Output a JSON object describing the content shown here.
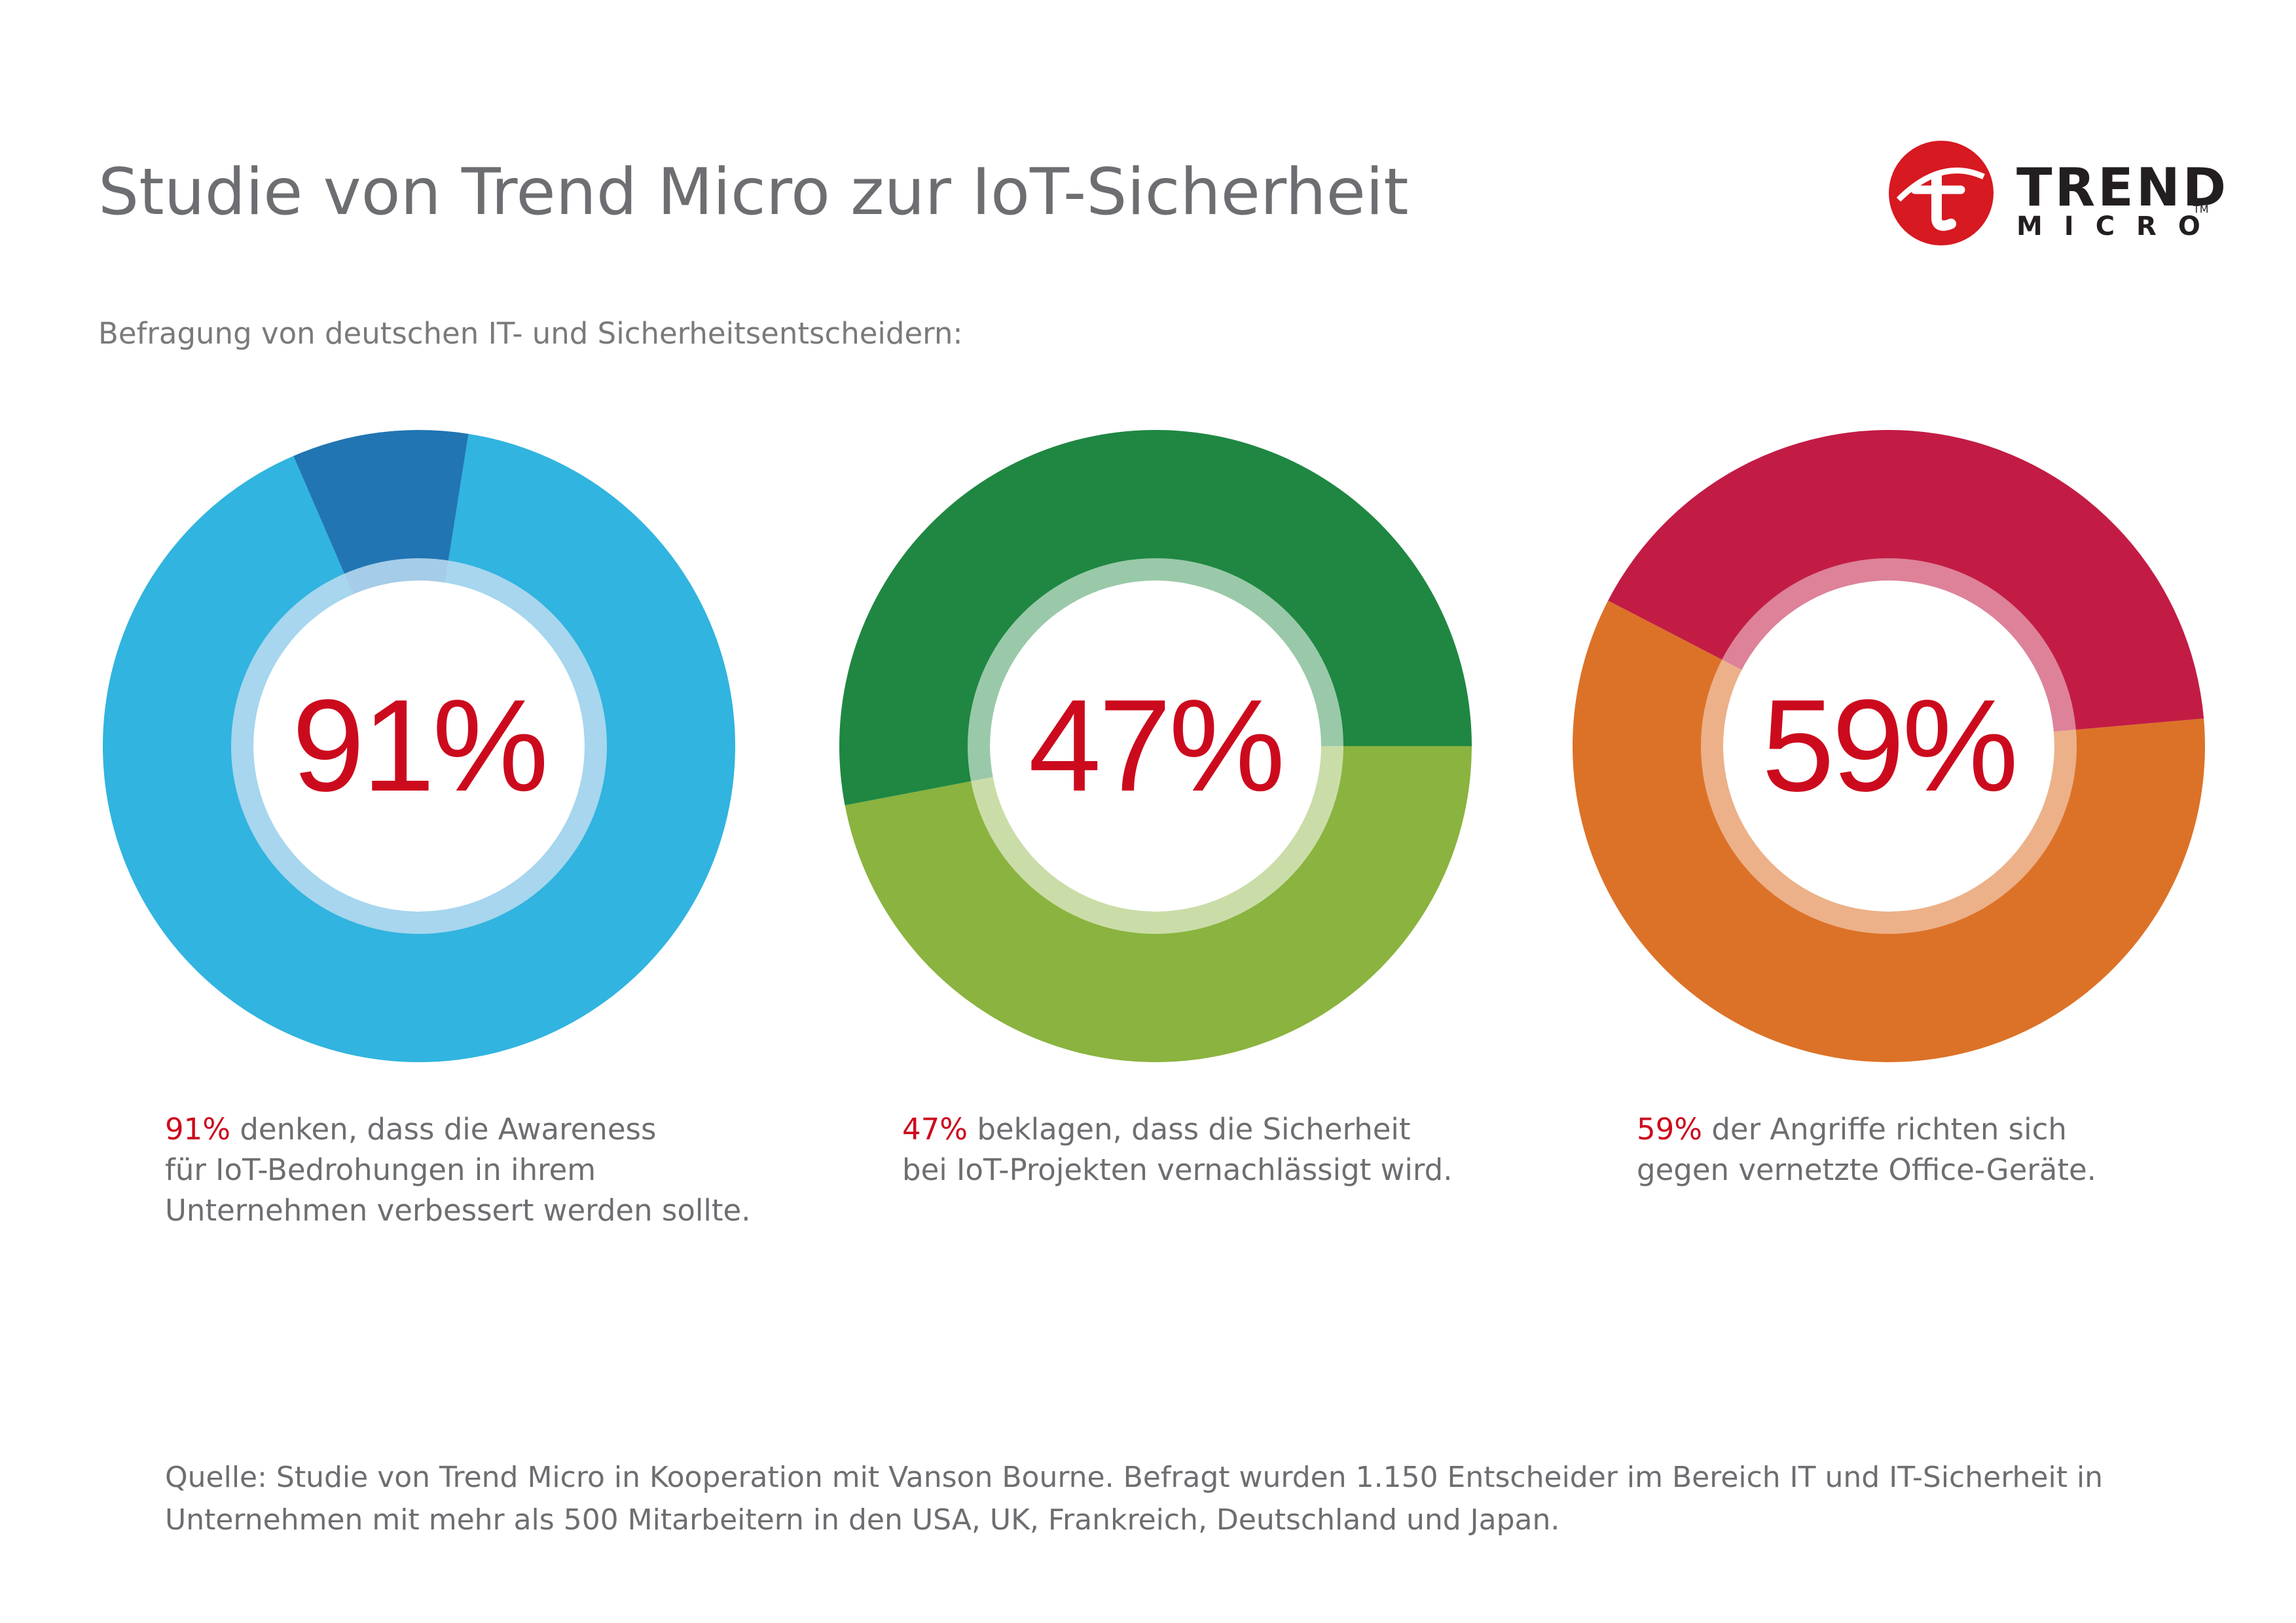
{
  "title": "Studie von Trend Micro zur IoT-Sicherheit",
  "subtitle": "Befragung von deutschen IT- und Sicherheitsentscheidern:",
  "logo": {
    "word1": "TREND",
    "word2": "MICRO",
    "tm": "TM",
    "color": "#d71921"
  },
  "chart_data": [
    {
      "type": "pie",
      "value_label": "91%",
      "values": [
        91,
        9
      ],
      "colors": [
        "#31b4df",
        "#2175b2"
      ],
      "ring_color": "#bcdcf1",
      "description": {
        "highlight": "91%",
        "line1_rest": " denken, dass die Awareness",
        "line2": "für IoT-Bedrohungen in ihrem",
        "line3": "Unternehmen verbessert werden sollte."
      }
    },
    {
      "type": "pie",
      "value_label": "47%",
      "values": [
        47,
        53
      ],
      "colors": [
        "#8ab33f",
        "#1f8742"
      ],
      "ring_color": "#ffffff",
      "description": {
        "highlight": "47%",
        "line1_rest": " beklagen, dass die Sicherheit",
        "line2": "bei IoT-Projekten vernachlässigt wird.",
        "line3": ""
      }
    },
    {
      "type": "pie",
      "value_label": "59%",
      "values": [
        59,
        41
      ],
      "colors": [
        "#dc7228",
        "#c21c45"
      ],
      "ring_color": "#ffffff",
      "description": {
        "highlight": "59%",
        "line1_rest": " der Angriffe richten sich",
        "line2": "gegen vernetzte Office-Geräte.",
        "line3": ""
      }
    }
  ],
  "source": {
    "line1": "Quelle: Studie von Trend Micro in Kooperation mit Vanson Bourne. Befragt wurden 1.150 Entscheider im Bereich IT und IT-Sicherheit in",
    "line2": "Unternehmen mit mehr als 500 Mitarbeitern in den USA, UK, Frankreich, Deutschland und Japan."
  }
}
